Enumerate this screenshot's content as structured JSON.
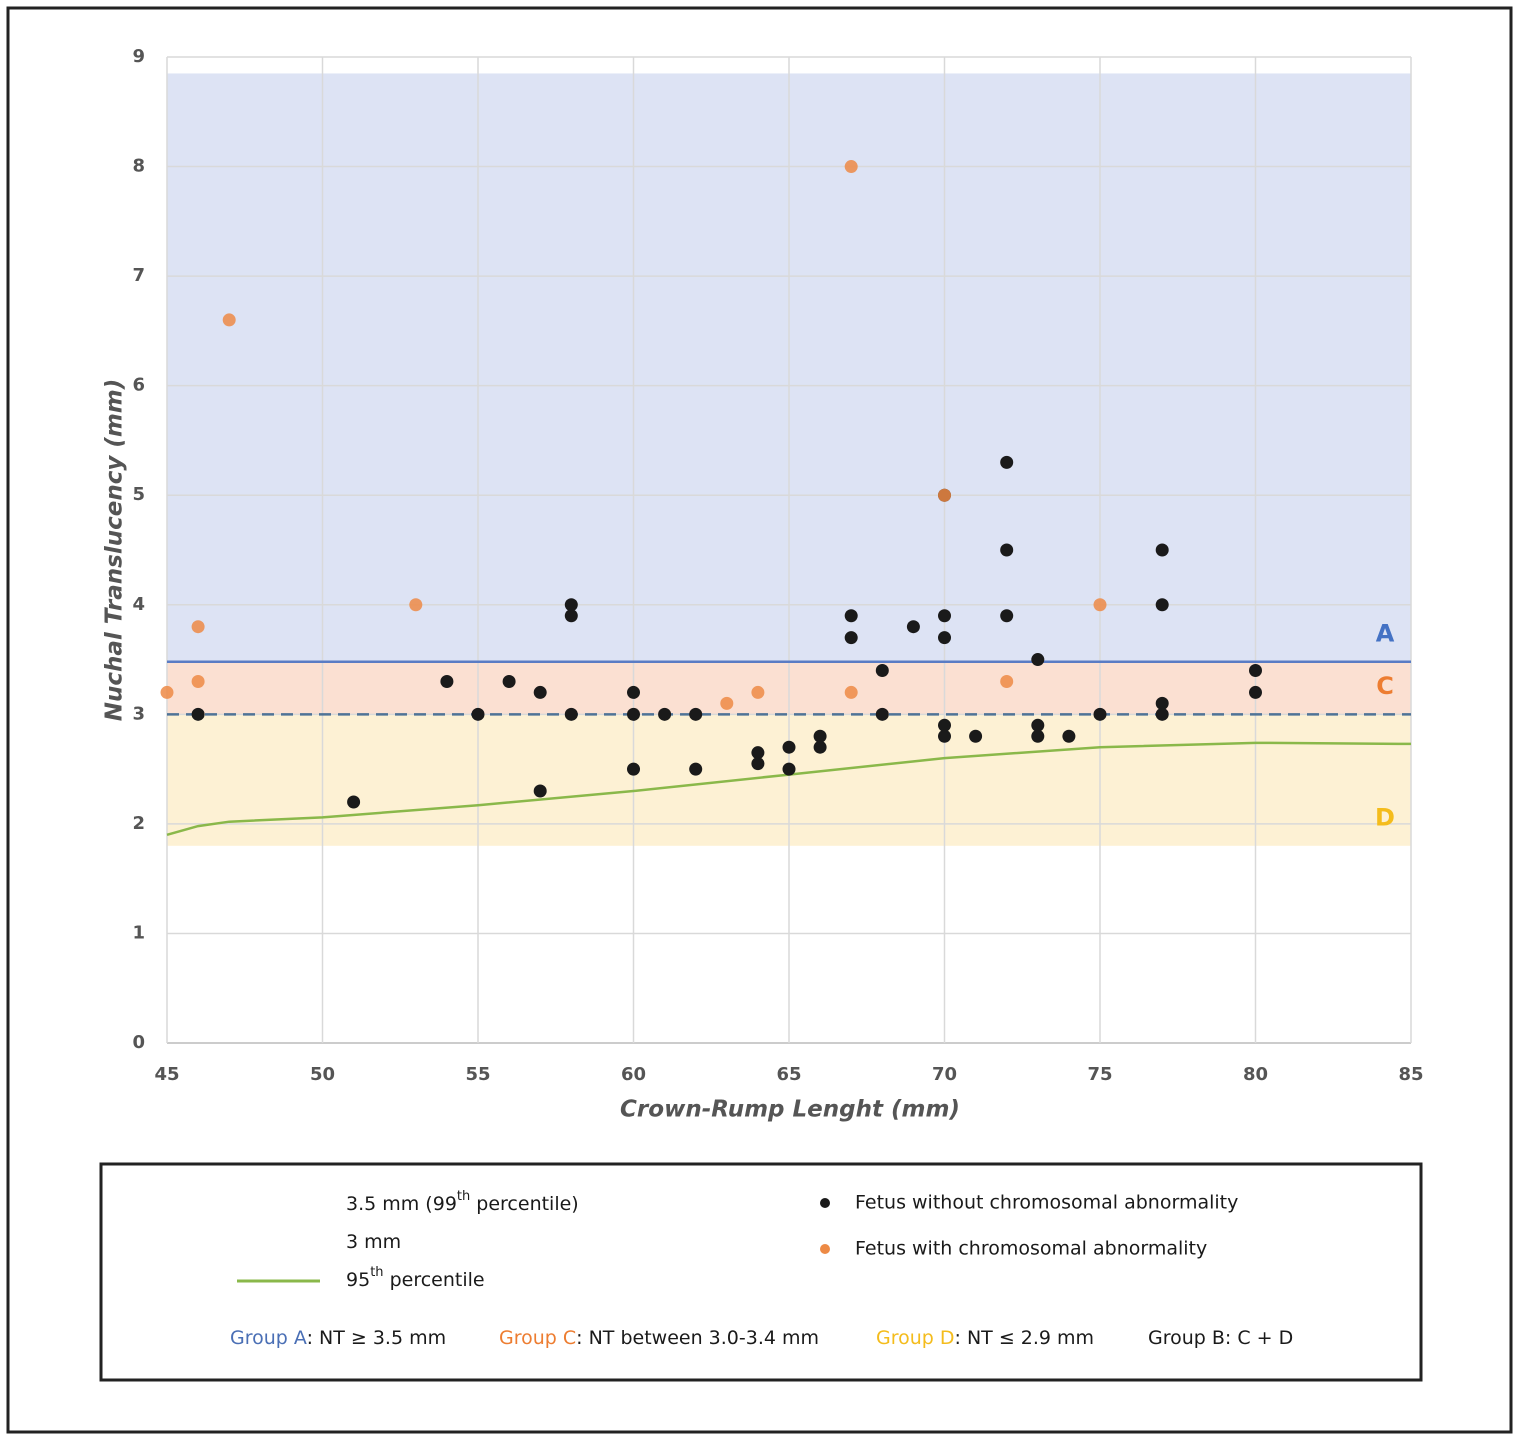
{
  "chart_data": {
    "type": "scatter",
    "x_label": "Crown-Rump Lenght (mm)",
    "y_label": "Nuchal Translucency (mm)",
    "xlim": [
      45,
      85
    ],
    "ylim": [
      0,
      9
    ],
    "xticks": [
      45,
      50,
      55,
      60,
      65,
      70,
      75,
      80,
      85
    ],
    "yticks": [
      0,
      1,
      2,
      3,
      4,
      5,
      6,
      7,
      8,
      9
    ],
    "grid": true,
    "bands": [
      {
        "name": "A",
        "color": "#4472c4",
        "fill": "#dde3f4",
        "range": [
          3.48,
          8.85
        ]
      },
      {
        "name": "C",
        "color": "#ed7d31",
        "fill": "#fbe0d2",
        "range": [
          3.0,
          3.48
        ]
      },
      {
        "name": "D",
        "color": "#f4bc1c",
        "fill": "#fdf1d4",
        "range": [
          1.8,
          3.0
        ]
      }
    ],
    "lines": [
      {
        "label": [
          "3.5 mm (99",
          "th",
          " percentile)"
        ],
        "color": "#5a7cc4",
        "y": 3.48,
        "dash": false
      },
      {
        "label": [
          "3 mm"
        ],
        "color": "#4f7397",
        "y": 3,
        "dash": true
      }
    ],
    "curve": {
      "label": [
        "95",
        "th",
        " percentile"
      ],
      "color": "#8ab84a",
      "x": [
        45,
        46,
        47,
        50,
        55,
        60,
        65,
        70,
        75,
        80,
        85
      ],
      "values": [
        1.9,
        1.98,
        2.02,
        2.06,
        2.17,
        2.3,
        2.45,
        2.6,
        2.7,
        2.74,
        2.73
      ]
    },
    "series": [
      {
        "name": "Fetus without chromosomal abnormality",
        "color": "#1a1a1a",
        "x": [
          46,
          51,
          54,
          55,
          56,
          57,
          57,
          58,
          58,
          58,
          60,
          60,
          60,
          61,
          62,
          62,
          64,
          64,
          65,
          65,
          66,
          66,
          67,
          67,
          68,
          68,
          69,
          70,
          70,
          70,
          70,
          70,
          71,
          72,
          72,
          72,
          73,
          73,
          73,
          74,
          75,
          77,
          77,
          77,
          77,
          80,
          80
        ],
        "values": [
          3.0,
          2.2,
          3.3,
          3.0,
          3.3,
          3.2,
          2.3,
          4.0,
          3.9,
          3.0,
          3.2,
          3.0,
          2.5,
          3.0,
          3.0,
          2.5,
          2.65,
          2.55,
          2.7,
          2.5,
          2.8,
          2.7,
          3.9,
          3.7,
          3.4,
          3.0,
          3.8,
          5.0,
          3.9,
          3.7,
          2.9,
          2.8,
          2.8,
          5.3,
          4.5,
          3.9,
          3.5,
          2.9,
          2.8,
          2.8,
          3.0,
          4.5,
          4.0,
          3.1,
          3.0,
          3.4,
          3.2
        ]
      },
      {
        "name": "Fetus with chromosomal abnormality",
        "color": "#ed8a45",
        "x": [
          45,
          46,
          46,
          47,
          53,
          63,
          64,
          67,
          67,
          70,
          72,
          75
        ],
        "values": [
          3.2,
          3.8,
          3.3,
          6.6,
          4.0,
          3.1,
          3.2,
          8.0,
          3.2,
          5.0,
          3.3,
          4.0
        ]
      }
    ],
    "groups": [
      {
        "name": "Group A",
        "text": ": NT ≥ 3.5 mm",
        "color": "#4a6fb5"
      },
      {
        "name": "Group C",
        "text": ": NT between 3.0-3.4 mm",
        "color": "#ed7d31"
      },
      {
        "name": "Group D",
        "text": ": NT ≤ 2.9 mm",
        "color": "#f4bc1c"
      },
      {
        "name": "Group B",
        "text": ": C + D",
        "color": "#1a1a1a"
      }
    ]
  }
}
